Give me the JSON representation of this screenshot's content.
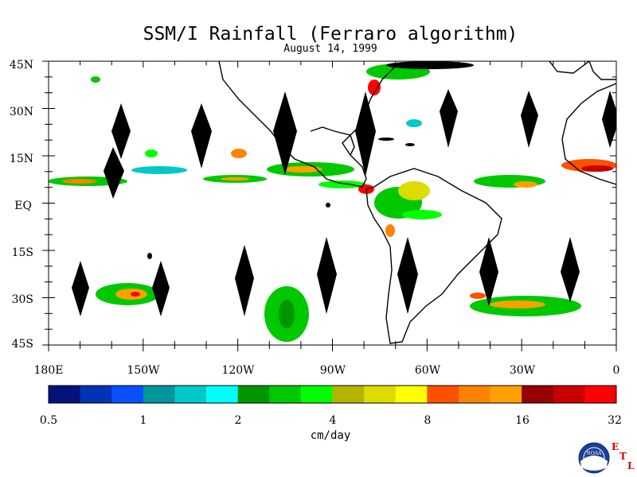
{
  "title": "SSM/I Rainfall (Ferraro algorithm)",
  "subtitle": "August 14, 1999",
  "map": {
    "lat_labels": [
      "45N",
      "30N",
      "15N",
      "EQ",
      "15S",
      "30S",
      "45S"
    ],
    "lon_labels": [
      "180E",
      "150W",
      "120W",
      "90W",
      "60W",
      "30W",
      "0"
    ]
  },
  "colorbar": {
    "colors": [
      "#04127c",
      "#0432b4",
      "#0a50ff",
      "#00969a",
      "#00c8c8",
      "#00ffff",
      "#009600",
      "#00c800",
      "#00ff00",
      "#b4b400",
      "#dcdc00",
      "#ffff00",
      "#ff5000",
      "#ff8200",
      "#ffa000",
      "#960000",
      "#c80000",
      "#ff0000"
    ],
    "tick_labels": [
      "0.5",
      "1",
      "2",
      "4",
      "8",
      "16",
      "32"
    ],
    "units": "cm/day"
  },
  "logo": {
    "noaa_text": "NOAA",
    "etl_letters": [
      "E",
      "T",
      "L"
    ],
    "etl_color": "#e00000"
  }
}
